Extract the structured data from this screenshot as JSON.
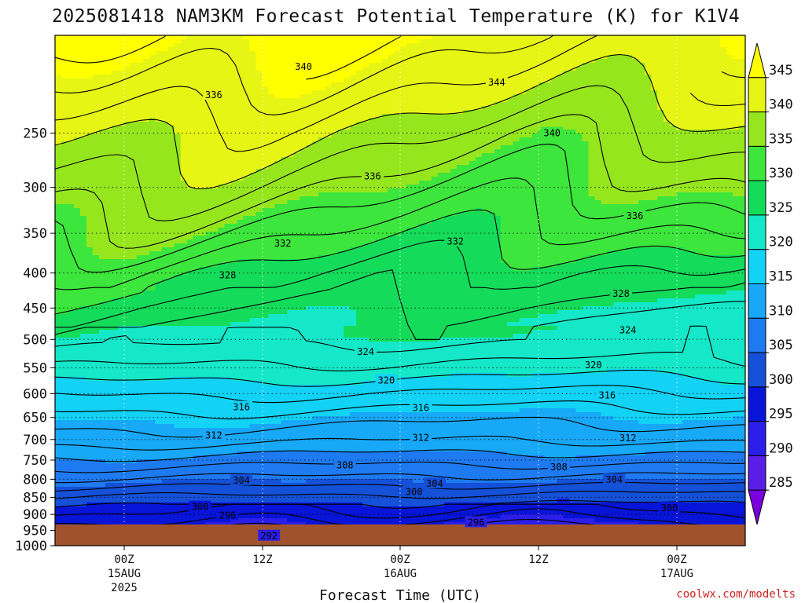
{
  "chart_data": {
    "type": "heatmap",
    "title": "2025081418 NAM3KM Forecast Potential Temperature (K) for K1V4",
    "xlabel": "Forecast Time (UTC)",
    "credit": "coolwx.com/modelts",
    "y_axis": {
      "ticks": [
        250,
        300,
        350,
        400,
        450,
        500,
        550,
        600,
        650,
        700,
        750,
        800,
        850,
        900,
        950,
        1000
      ],
      "range": [
        1000,
        180
      ]
    },
    "x_axis": {
      "ticks": [
        {
          "label": "00Z",
          "date": "15AUG",
          "year": "2025"
        },
        {
          "label": "12Z",
          "date": "",
          "year": ""
        },
        {
          "label": "00Z",
          "date": "16AUG",
          "year": ""
        },
        {
          "label": "12Z",
          "date": "",
          "year": ""
        },
        {
          "label": "00Z",
          "date": "17AUG",
          "year": ""
        }
      ]
    },
    "colorbar": {
      "levels": [
        285,
        290,
        295,
        300,
        305,
        310,
        315,
        320,
        325,
        330,
        335,
        340,
        345
      ],
      "colors": [
        "#7a00e0",
        "#5a1ee8",
        "#2a1ee8",
        "#0814d8",
        "#1450d8",
        "#1e7af0",
        "#18a8f8",
        "#12d2f5",
        "#14e8c8",
        "#14dc5a",
        "#3ce63c",
        "#96e61e",
        "#e6f514",
        "#ffff00"
      ]
    },
    "contour_labels": [
      {
        "value": "340",
        "t": 0.36,
        "p": 200
      },
      {
        "value": "344",
        "t": 0.64,
        "p": 211
      },
      {
        "value": "336",
        "t": 0.23,
        "p": 220
      },
      {
        "value": "340",
        "t": 0.72,
        "p": 250
      },
      {
        "value": "336",
        "t": 0.46,
        "p": 289
      },
      {
        "value": "336",
        "t": 0.84,
        "p": 330
      },
      {
        "value": "332",
        "t": 0.33,
        "p": 362
      },
      {
        "value": "332",
        "t": 0.58,
        "p": 360
      },
      {
        "value": "328",
        "t": 0.25,
        "p": 403
      },
      {
        "value": "328",
        "t": 0.82,
        "p": 429
      },
      {
        "value": "324",
        "t": 0.83,
        "p": 485
      },
      {
        "value": "324",
        "t": 0.45,
        "p": 521
      },
      {
        "value": "320",
        "t": 0.78,
        "p": 545
      },
      {
        "value": "320",
        "t": 0.48,
        "p": 574
      },
      {
        "value": "316",
        "t": 0.8,
        "p": 603
      },
      {
        "value": "316",
        "t": 0.27,
        "p": 628
      },
      {
        "value": "316",
        "t": 0.53,
        "p": 629
      },
      {
        "value": "312",
        "t": 0.23,
        "p": 690
      },
      {
        "value": "312",
        "t": 0.53,
        "p": 696
      },
      {
        "value": "312",
        "t": 0.83,
        "p": 697
      },
      {
        "value": "308",
        "t": 0.42,
        "p": 763
      },
      {
        "value": "308",
        "t": 0.73,
        "p": 768
      },
      {
        "value": "304",
        "t": 0.27,
        "p": 803
      },
      {
        "value": "304",
        "t": 0.55,
        "p": 812
      },
      {
        "value": "304",
        "t": 0.81,
        "p": 801
      },
      {
        "value": "300",
        "t": 0.52,
        "p": 835
      },
      {
        "value": "300",
        "t": 0.21,
        "p": 878
      },
      {
        "value": "300",
        "t": 0.89,
        "p": 881
      },
      {
        "value": "296",
        "t": 0.25,
        "p": 903
      },
      {
        "value": "296",
        "t": 0.61,
        "p": 925
      },
      {
        "value": "292",
        "t": 0.31,
        "p": 968
      }
    ]
  }
}
